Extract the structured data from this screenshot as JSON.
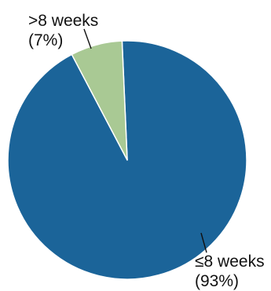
{
  "chart_data": {
    "type": "pie",
    "title": "",
    "slices": [
      {
        "label": "≤8 weeks",
        "percent_label": "(93%)",
        "value": 93,
        "color": "#1b6499"
      },
      {
        "label": ">8 weeks",
        "percent_label": "(7%)",
        "value": 7,
        "color": "#a9c994"
      }
    ],
    "slice_border_color": "#ffffff",
    "leader_line_color": "#111111"
  }
}
